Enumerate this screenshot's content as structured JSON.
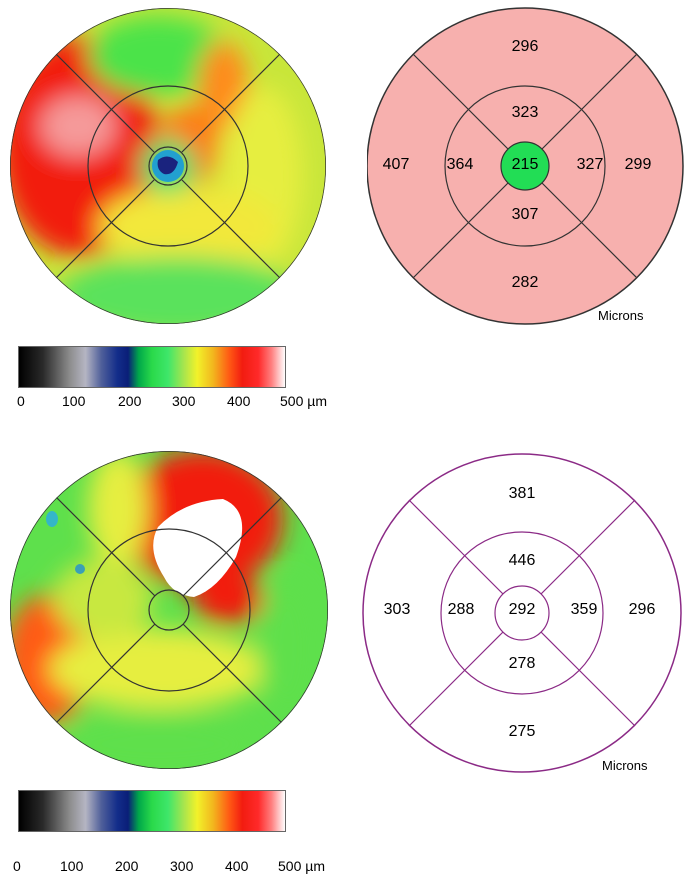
{
  "top": {
    "grid": {
      "center": "215",
      "inner": {
        "top": "323",
        "bottom": "307",
        "left": "364",
        "right": "327"
      },
      "outer": {
        "top": "296",
        "bottom": "282",
        "left": "407",
        "right": "299"
      },
      "fill_color": "#f7b0ae",
      "center_color": "#22dd55",
      "line_color": "#222222"
    },
    "units": "Microns"
  },
  "bottom": {
    "grid": {
      "center": "292",
      "inner": {
        "top": "446",
        "bottom": "278",
        "left": "288",
        "right": "359"
      },
      "outer": {
        "top": "381",
        "bottom": "275",
        "left": "303",
        "right": "296"
      },
      "fill_color": "#ffffff",
      "line_color": "#8b2a86"
    },
    "units": "Microns"
  },
  "colorbar": {
    "ticks": [
      "0",
      "100",
      "200",
      "300",
      "400",
      "500 µm"
    ]
  }
}
